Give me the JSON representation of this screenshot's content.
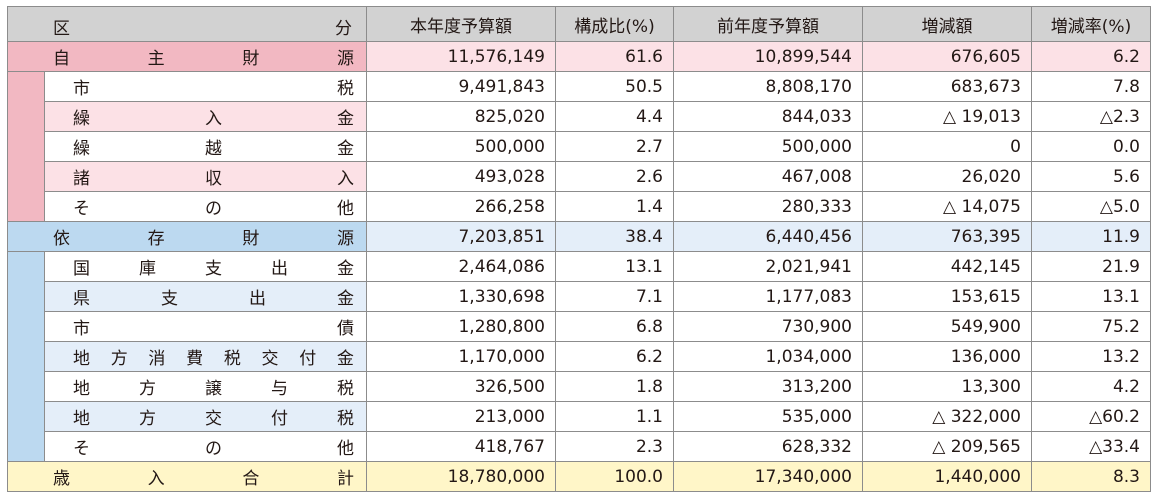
{
  "headers": {
    "kubun_left": "区",
    "kubun_right": "分",
    "current_budget": "本年度予算額",
    "ratio": "構成比(%)",
    "previous_budget": "前年度予算額",
    "change": "増減額",
    "change_rate": "増減率(%)"
  },
  "colors": {
    "pink_group": "#f2b8c2",
    "pink_row": "#fce1e6",
    "blue_group": "#bcd9f0",
    "blue_row": "#e4eef9",
    "total_row": "#fff6c8",
    "header": "#d2d2d2"
  },
  "groups": [
    {
      "key": "own",
      "label": "自主財源",
      "current": "11,576,149",
      "ratio": "61.6",
      "previous": "10,899,544",
      "change": "676,605",
      "rate": "6.2",
      "items": [
        {
          "label": "市税",
          "current": "9,491,843",
          "ratio": "50.5",
          "previous": "8,808,170",
          "change": "683,673",
          "rate": "7.8"
        },
        {
          "label": "繰入金",
          "current": "825,020",
          "ratio": "4.4",
          "previous": "844,033",
          "change": "△ 19,013",
          "rate": "△2.3"
        },
        {
          "label": "繰越金",
          "current": "500,000",
          "ratio": "2.7",
          "previous": "500,000",
          "change": "0",
          "rate": "0.0"
        },
        {
          "label": "諸収入",
          "current": "493,028",
          "ratio": "2.6",
          "previous": "467,008",
          "change": "26,020",
          "rate": "5.6"
        },
        {
          "label": "その他",
          "current": "266,258",
          "ratio": "1.4",
          "previous": "280,333",
          "change": "△ 14,075",
          "rate": "△5.0"
        }
      ]
    },
    {
      "key": "dependent",
      "label": "依存財源",
      "current": "7,203,851",
      "ratio": "38.4",
      "previous": "6,440,456",
      "change": "763,395",
      "rate": "11.9",
      "items": [
        {
          "label": "国庫支出金",
          "current": "2,464,086",
          "ratio": "13.1",
          "previous": "2,021,941",
          "change": "442,145",
          "rate": "21.9"
        },
        {
          "label": "県支出金",
          "current": "1,330,698",
          "ratio": "7.1",
          "previous": "1,177,083",
          "change": "153,615",
          "rate": "13.1"
        },
        {
          "label": "市債",
          "current": "1,280,800",
          "ratio": "6.8",
          "previous": "730,900",
          "change": "549,900",
          "rate": "75.2"
        },
        {
          "label": "地方消費税交付金",
          "current": "1,170,000",
          "ratio": "6.2",
          "previous": "1,034,000",
          "change": "136,000",
          "rate": "13.2"
        },
        {
          "label": "地方譲与税",
          "current": "326,500",
          "ratio": "1.8",
          "previous": "313,200",
          "change": "13,300",
          "rate": "4.2"
        },
        {
          "label": "地方交付税",
          "current": "213,000",
          "ratio": "1.1",
          "previous": "535,000",
          "change": "△ 322,000",
          "rate": "△60.2"
        },
        {
          "label": "その他",
          "current": "418,767",
          "ratio": "2.3",
          "previous": "628,332",
          "change": "△ 209,565",
          "rate": "△33.4"
        }
      ]
    }
  ],
  "total": {
    "label": "歳入合計",
    "current": "18,780,000",
    "ratio": "100.0",
    "previous": "17,340,000",
    "change": "1,440,000",
    "rate": "8.3"
  }
}
